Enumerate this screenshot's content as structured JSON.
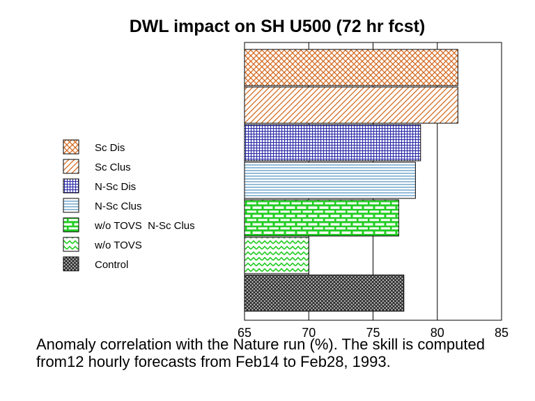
{
  "chart_data": {
    "type": "bar",
    "orientation": "horizontal",
    "title": "DWL impact on SH U500 (72 hr fcst)",
    "caption": "Anomaly correlation with the Nature run (%).  The skill is computed from12 hourly forecasts from Feb14 to Feb28, 1993.",
    "xlim": [
      65,
      85
    ],
    "xticks": [
      "65",
      "70",
      "75",
      "80",
      "85"
    ],
    "grid": "vertical",
    "legend_position": "left",
    "series": [
      {
        "name": "Sc Dis",
        "value": 81.6,
        "color": "#d4691e",
        "pattern": "crosshatch"
      },
      {
        "name": "Sc Clus",
        "value": 81.6,
        "color": "#d4691e",
        "pattern": "diagonal"
      },
      {
        "name": "N-Sc Dis",
        "value": 78.7,
        "color": "#2a2aa8",
        "pattern": "grid"
      },
      {
        "name": "N-Sc Clus",
        "value": 78.3,
        "color": "#2a7ab0",
        "pattern": "horizontal"
      },
      {
        "name": "w/o TOVS  N-Sc Clus",
        "value": 77.0,
        "color": "#22cc22",
        "pattern": "brick"
      },
      {
        "name": "w/o TOVS",
        "value": 70.0,
        "color": "#22cc22",
        "pattern": "zigzag"
      },
      {
        "name": "Control",
        "value": 77.4,
        "color": "#222222",
        "pattern": "dense-crosshatch"
      }
    ]
  }
}
